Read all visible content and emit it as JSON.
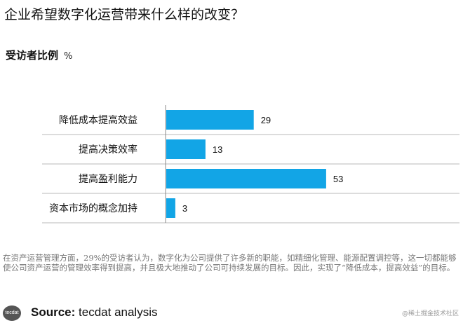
{
  "title": "企业希望数字化运营带来什么样的改变？",
  "subtitle": {
    "label": "受访者比例",
    "unit": "%"
  },
  "chart_data": {
    "type": "bar",
    "orientation": "horizontal",
    "categories": [
      "降低成本提高效益",
      "提高决策效率",
      "提高盈利能力",
      "资本市场的概念加持"
    ],
    "values": [
      29,
      13,
      53,
      3
    ],
    "xlim": [
      0,
      60
    ],
    "bar_color": "#12A5E6",
    "grid": false,
    "legend": "none"
  },
  "note": "在资产运营管理方面，29%的受访者认为，数字化为公司提供了许多新的职能，如精细化管理、能源配置调控等，这一切都能够使公司资产运营的管理效率得到提高，并且极大地推动了公司可持续发展的目标。因此，实现了“降低成本，提高效益”的目标。",
  "footer": {
    "logo_text": "tecdat",
    "source_label": "Source:",
    "source_text": "tecdat analysis",
    "watermark": "@稀土掘金技术社区"
  }
}
